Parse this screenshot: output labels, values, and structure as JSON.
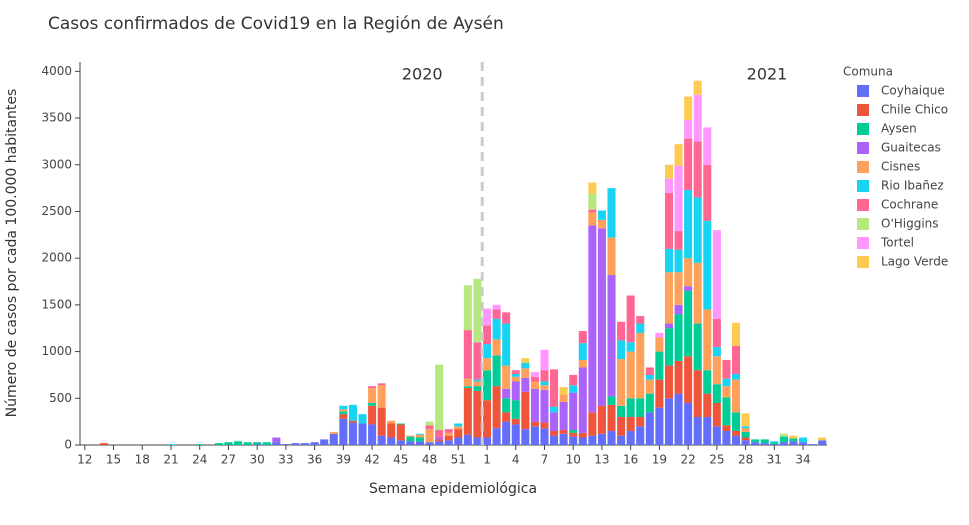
{
  "chart_data": {
    "type": "stacked_bar",
    "title": "Casos confirmados de Covid19 en la Región de Aysén",
    "x_label": "Semana epidemiológica",
    "y_label": "Número de casos por cada 100.000 habitantes",
    "legend_title": "Comuna",
    "annotations": [
      "2020",
      "2021"
    ],
    "categories": [
      "12",
      null,
      null,
      "15",
      null,
      null,
      "18",
      null,
      null,
      "21",
      null,
      null,
      "24",
      null,
      null,
      "27",
      null,
      null,
      "30",
      null,
      null,
      "33",
      null,
      null,
      "36",
      null,
      null,
      "39",
      null,
      null,
      "42",
      null,
      null,
      "45",
      null,
      null,
      "48",
      null,
      null,
      "51",
      null,
      null,
      "1",
      null,
      null,
      "4",
      null,
      null,
      "7",
      null,
      null,
      "10",
      null,
      null,
      "13",
      null,
      null,
      "16",
      null,
      null,
      "19",
      null,
      null,
      "22",
      null,
      null,
      "25",
      null,
      null,
      "28",
      null,
      null,
      "31",
      null,
      null,
      "34",
      null,
      null
    ],
    "ylim": [
      0,
      4100
    ],
    "yticks": [
      0,
      500,
      1000,
      1500,
      2000,
      2500,
      3000,
      3500,
      4000
    ],
    "grid": false,
    "legend": "right",
    "series": [
      {
        "name": "Coyhaique",
        "color": "#636efa",
        "values": [
          0,
          0,
          0,
          0,
          0,
          0,
          0,
          0,
          0,
          0,
          0,
          0,
          0,
          0,
          0,
          0,
          0,
          0,
          10,
          0,
          30,
          10,
          20,
          20,
          30,
          60,
          120,
          280,
          240,
          230,
          220,
          100,
          80,
          50,
          40,
          40,
          30,
          40,
          50,
          80,
          110,
          80,
          80,
          180,
          250,
          220,
          170,
          200,
          180,
          100,
          120,
          90,
          80,
          100,
          120,
          150,
          100,
          150,
          200,
          350,
          400,
          500,
          550,
          450,
          300,
          300,
          200,
          150,
          100,
          50,
          30,
          20,
          10,
          30,
          40,
          30,
          10,
          50
        ]
      },
      {
        "name": "Chile Chico",
        "color": "#EF553B",
        "values": [
          0,
          0,
          20,
          0,
          0,
          0,
          0,
          0,
          0,
          0,
          0,
          0,
          0,
          0,
          0,
          0,
          0,
          0,
          0,
          0,
          0,
          0,
          0,
          0,
          0,
          0,
          0,
          50,
          20,
          0,
          200,
          300,
          150,
          170,
          0,
          0,
          0,
          20,
          50,
          90,
          500,
          500,
          400,
          450,
          100,
          60,
          400,
          50,
          60,
          50,
          40,
          40,
          50,
          250,
          300,
          280,
          200,
          150,
          100,
          0,
          300,
          350,
          350,
          500,
          500,
          250,
          250,
          60,
          50,
          30,
          0,
          0,
          0,
          0,
          0,
          0,
          0,
          0
        ]
      },
      {
        "name": "Aysen",
        "color": "#00cc96",
        "values": [
          0,
          0,
          0,
          0,
          0,
          0,
          0,
          0,
          0,
          0,
          0,
          0,
          10,
          0,
          20,
          30,
          40,
          30,
          20,
          30,
          0,
          0,
          0,
          0,
          0,
          0,
          0,
          30,
          0,
          0,
          30,
          0,
          0,
          10,
          50,
          40,
          0,
          0,
          0,
          0,
          20,
          50,
          320,
          330,
          150,
          200,
          0,
          0,
          0,
          0,
          0,
          30,
          0,
          0,
          0,
          90,
          120,
          200,
          200,
          200,
          300,
          400,
          500,
          700,
          500,
          250,
          200,
          300,
          200,
          60,
          30,
          40,
          20,
          60,
          30,
          0,
          0,
          0
        ]
      },
      {
        "name": "Guaitecas",
        "color": "#ab63fa",
        "values": [
          0,
          0,
          0,
          0,
          0,
          0,
          0,
          0,
          0,
          0,
          0,
          0,
          0,
          0,
          0,
          0,
          0,
          0,
          0,
          0,
          50,
          0,
          0,
          0,
          0,
          0,
          0,
          0,
          0,
          0,
          0,
          0,
          0,
          0,
          0,
          0,
          0,
          20,
          0,
          0,
          0,
          0,
          0,
          0,
          100,
          200,
          150,
          350,
          350,
          200,
          300,
          400,
          700,
          2000,
          1900,
          1300,
          0,
          0,
          0,
          0,
          0,
          50,
          100,
          50,
          0,
          0,
          0,
          0,
          0,
          0,
          0,
          0,
          0,
          0,
          0,
          0,
          0,
          0
        ]
      },
      {
        "name": "Cisnes",
        "color": "#FFA15A",
        "values": [
          0,
          0,
          0,
          0,
          0,
          0,
          0,
          0,
          0,
          0,
          0,
          0,
          0,
          0,
          0,
          0,
          0,
          0,
          0,
          0,
          0,
          0,
          0,
          0,
          0,
          0,
          20,
          20,
          0,
          0,
          160,
          240,
          30,
          0,
          10,
          30,
          140,
          0,
          30,
          30,
          80,
          50,
          130,
          170,
          250,
          50,
          100,
          80,
          50,
          0,
          80,
          0,
          80,
          140,
          90,
          400,
          500,
          500,
          700,
          150,
          150,
          550,
          350,
          300,
          650,
          650,
          300,
          120,
          350,
          40,
          0,
          0,
          0,
          0,
          0,
          0,
          0,
          0
        ]
      },
      {
        "name": "Rio Ibañez",
        "color": "#19d3f3",
        "values": [
          0,
          0,
          0,
          0,
          0,
          0,
          0,
          0,
          0,
          10,
          0,
          0,
          0,
          0,
          0,
          0,
          0,
          0,
          0,
          0,
          0,
          0,
          0,
          0,
          0,
          0,
          0,
          40,
          170,
          100,
          0,
          0,
          0,
          0,
          0,
          10,
          0,
          0,
          0,
          30,
          0,
          20,
          150,
          220,
          450,
          30,
          60,
          0,
          40,
          60,
          0,
          80,
          180,
          0,
          100,
          530,
          200,
          100,
          100,
          50,
          0,
          250,
          240,
          730,
          700,
          950,
          100,
          80,
          60,
          20,
          0,
          0,
          10,
          0,
          0,
          50,
          0,
          0
        ]
      },
      {
        "name": "Cochrane",
        "color": "#FF6692",
        "values": [
          0,
          0,
          0,
          0,
          0,
          0,
          0,
          0,
          0,
          0,
          0,
          0,
          0,
          0,
          0,
          0,
          0,
          0,
          0,
          0,
          0,
          0,
          0,
          0,
          0,
          0,
          0,
          0,
          0,
          0,
          20,
          20,
          0,
          0,
          0,
          0,
          40,
          80,
          40,
          0,
          520,
          400,
          200,
          100,
          120,
          40,
          0,
          50,
          120,
          400,
          0,
          110,
          130,
          30,
          0,
          0,
          200,
          500,
          80,
          80,
          0,
          600,
          200,
          550,
          600,
          600,
          300,
          200,
          300,
          0,
          0,
          0,
          0,
          0,
          0,
          0,
          0,
          0
        ]
      },
      {
        "name": "O'Higgins",
        "color": "#B6E880",
        "values": [
          0,
          0,
          0,
          0,
          0,
          0,
          0,
          0,
          0,
          0,
          0,
          0,
          0,
          0,
          0,
          0,
          0,
          0,
          0,
          0,
          0,
          0,
          0,
          0,
          0,
          0,
          0,
          0,
          0,
          0,
          0,
          0,
          0,
          0,
          0,
          0,
          40,
          700,
          0,
          0,
          480,
          680,
          0,
          0,
          0,
          0,
          0,
          0,
          0,
          0,
          0,
          0,
          0,
          170,
          0,
          0,
          0,
          0,
          0,
          0,
          0,
          0,
          0,
          0,
          0,
          0,
          0,
          0,
          0,
          0,
          0,
          0,
          0,
          30,
          0,
          0,
          0,
          0
        ]
      },
      {
        "name": "Tortel",
        "color": "#FF97FF",
        "values": [
          0,
          0,
          0,
          0,
          0,
          0,
          0,
          0,
          0,
          0,
          0,
          0,
          0,
          0,
          0,
          0,
          0,
          0,
          0,
          0,
          0,
          0,
          0,
          0,
          0,
          0,
          0,
          0,
          0,
          0,
          0,
          0,
          0,
          0,
          0,
          0,
          0,
          0,
          0,
          0,
          0,
          0,
          180,
          50,
          0,
          0,
          0,
          50,
          220,
          0,
          0,
          0,
          0,
          0,
          0,
          0,
          0,
          0,
          0,
          0,
          50,
          150,
          700,
          200,
          500,
          400,
          950,
          0,
          0,
          0,
          0,
          0,
          0,
          0,
          0,
          0,
          0,
          0
        ]
      },
      {
        "name": "Lago Verde",
        "color": "#FECB52",
        "values": [
          0,
          0,
          0,
          0,
          0,
          0,
          0,
          0,
          0,
          0,
          0,
          0,
          0,
          0,
          0,
          0,
          0,
          0,
          0,
          0,
          0,
          0,
          0,
          0,
          0,
          0,
          0,
          0,
          0,
          0,
          0,
          0,
          0,
          0,
          0,
          0,
          0,
          0,
          0,
          0,
          0,
          0,
          0,
          0,
          0,
          0,
          50,
          0,
          0,
          0,
          80,
          0,
          0,
          120,
          0,
          0,
          0,
          0,
          0,
          0,
          0,
          150,
          230,
          250,
          150,
          0,
          0,
          0,
          250,
          140,
          0,
          0,
          0,
          0,
          30,
          0,
          0,
          30
        ]
      }
    ]
  }
}
